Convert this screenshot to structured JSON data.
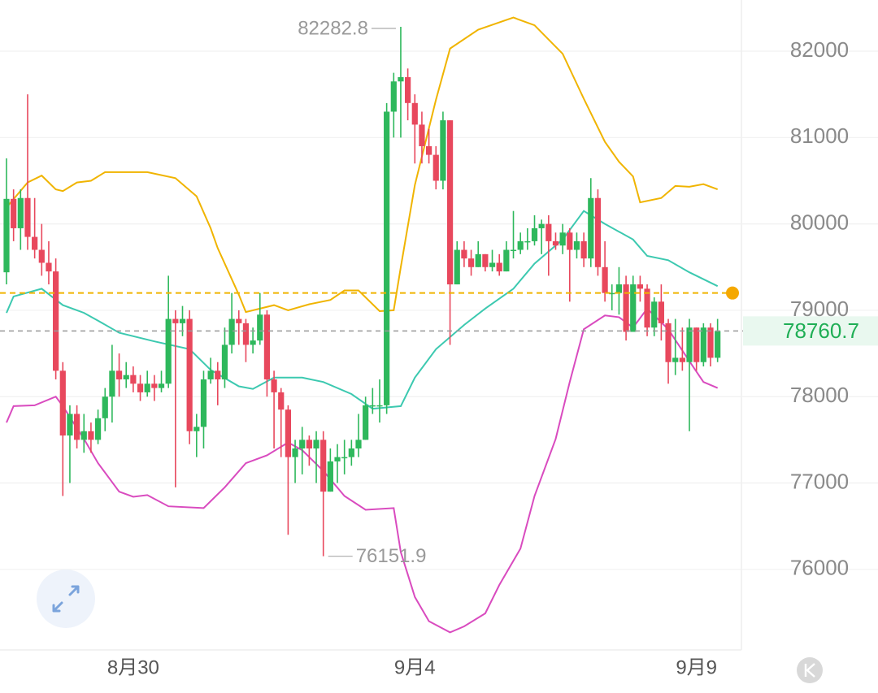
{
  "chart_data": {
    "type": "candlestick",
    "categories": [
      null,
      null,
      null,
      null,
      null,
      null,
      null,
      null,
      null,
      null,
      null,
      null,
      null,
      null,
      null,
      null,
      null,
      null,
      "8月30",
      null,
      null,
      null,
      null,
      null,
      null,
      null,
      null,
      null,
      null,
      null,
      null,
      null,
      null,
      null,
      null,
      null,
      null,
      null,
      null,
      null,
      null,
      null,
      null,
      null,
      null,
      null,
      null,
      null,
      null,
      null,
      null,
      null,
      null,
      null,
      null,
      null,
      null,
      null,
      "9月4",
      null,
      null,
      null,
      null,
      null,
      null,
      null,
      null,
      null,
      null,
      null,
      null,
      null,
      null,
      null,
      null,
      null,
      null,
      null,
      null,
      null,
      null,
      null,
      null,
      null,
      null,
      null,
      null,
      null,
      null,
      null,
      null,
      null,
      null,
      null,
      null,
      null,
      null,
      null,
      "9月9",
      null,
      null,
      null
    ],
    "open": [
      79440,
      80290,
      79950,
      80300,
      79850,
      79700,
      79550,
      79450,
      78300,
      77550,
      77800,
      77500,
      77600,
      77500,
      77750,
      78000,
      78300,
      78200,
      78250,
      78150,
      78050,
      78150,
      78100,
      78150,
      78900,
      78850,
      78900,
      77600,
      77650,
      78200,
      78300,
      78200,
      78600,
      78900,
      78850,
      78600,
      78650,
      78950,
      78200,
      78050,
      77850,
      77300,
      77400,
      77500,
      77400,
      77500,
      76900,
      77250,
      77300,
      77300,
      77400,
      77500,
      77900,
      77900,
      77900,
      81300,
      81650,
      81700,
      81400,
      81150,
      80900,
      80800,
      80500,
      81200,
      79300,
      79700,
      79600,
      79500,
      79650,
      79500,
      79550,
      79450,
      79700,
      79700,
      79800,
      79800,
      79950,
      80000,
      79800,
      79750,
      79900,
      79700,
      79800,
      79600,
      80300,
      79500,
      79200,
      79200,
      79300,
      78750,
      79300,
      79250,
      78800,
      79100,
      78850,
      78400,
      78450,
      78400,
      78800,
      78400,
      78800,
      78450
    ],
    "high": [
      80760,
      80400,
      80400,
      81500,
      80300,
      80000,
      79800,
      79600,
      78400,
      77900,
      77900,
      77800,
      77700,
      77850,
      78100,
      78600,
      78500,
      78400,
      78350,
      78250,
      78300,
      78250,
      78300,
      79400,
      79000,
      79050,
      79000,
      77800,
      78300,
      78450,
      78400,
      78800,
      79200,
      79000,
      78900,
      78800,
      79200,
      79000,
      78300,
      78100,
      77900,
      77500,
      77650,
      77550,
      77600,
      77600,
      77400,
      77450,
      77500,
      77500,
      77800,
      78000,
      78100,
      78200,
      81400,
      81750,
      82282.8,
      81800,
      81500,
      81300,
      81100,
      80900,
      81300,
      81200,
      79800,
      79800,
      79700,
      79800,
      79650,
      79700,
      79650,
      79800,
      80150,
      79900,
      79950,
      80100,
      80050,
      80100,
      79900,
      80000,
      79950,
      79900,
      79900,
      80530,
      80400,
      79800,
      79300,
      79500,
      79400,
      79400,
      79400,
      79300,
      79150,
      79300,
      78900,
      78900,
      78800,
      78900,
      78800,
      78850,
      78850,
      78900
    ],
    "low": [
      79300,
      79800,
      79700,
      79700,
      79600,
      79400,
      79300,
      78200,
      76850,
      77000,
      77400,
      77350,
      77350,
      77450,
      77600,
      77700,
      78000,
      78100,
      78050,
      77950,
      78000,
      77950,
      78050,
      78100,
      76950,
      78700,
      77450,
      77300,
      77400,
      78150,
      77900,
      78100,
      78500,
      78600,
      78400,
      78500,
      78600,
      78000,
      77400,
      77300,
      76400,
      77000,
      77100,
      77200,
      77000,
      76151.9,
      76900,
      77000,
      77100,
      77200,
      77300,
      77500,
      77800,
      77700,
      77800,
      81000,
      81000,
      81200,
      80700,
      80700,
      80700,
      80400,
      80400,
      78600,
      79300,
      79500,
      79400,
      79500,
      79450,
      79450,
      79400,
      79450,
      79600,
      79650,
      79700,
      79750,
      79650,
      79400,
      79700,
      79650,
      79100,
      79600,
      79500,
      79500,
      79400,
      79100,
      79000,
      78950,
      78650,
      78750,
      79100,
      78700,
      78700,
      78650,
      78150,
      78250,
      78300,
      77600,
      78300,
      78350,
      78350,
      78400
    ],
    "close": [
      80290,
      79950,
      80300,
      79850,
      79700,
      79550,
      79450,
      78300,
      77550,
      77800,
      77500,
      77600,
      77500,
      77750,
      78000,
      78300,
      78200,
      78250,
      78150,
      78050,
      78150,
      78100,
      78150,
      78900,
      78850,
      78900,
      77600,
      77650,
      78200,
      78300,
      78200,
      78600,
      78900,
      78850,
      78600,
      78650,
      78950,
      78200,
      78050,
      77850,
      77300,
      77400,
      77500,
      77400,
      77500,
      76900,
      77250,
      77300,
      77300,
      77400,
      77500,
      77900,
      77900,
      77900,
      81300,
      81650,
      81700,
      81400,
      81150,
      80900,
      80800,
      80500,
      81200,
      79300,
      79700,
      79600,
      79500,
      79650,
      79500,
      79550,
      79450,
      79700,
      79700,
      79800,
      79800,
      79950,
      80000,
      79800,
      79750,
      79900,
      79700,
      79800,
      79600,
      80300,
      79500,
      79200,
      79200,
      79300,
      78750,
      79300,
      79250,
      78800,
      79100,
      78850,
      78400,
      78450,
      78400,
      78800,
      78400,
      78800,
      78450,
      78760.7
    ],
    "up_color": "#2eb85c",
    "down_color": "#e8485d",
    "bands": [
      {
        "color": "#f0b400",
        "x": [
          0,
          3,
          5,
          7,
          8,
          10,
          12,
          14,
          20,
          24,
          27,
          29,
          30,
          33,
          34,
          38,
          40,
          43,
          46,
          48,
          50,
          53,
          55,
          56,
          58,
          61,
          63,
          67,
          72,
          75,
          79,
          82,
          85,
          87,
          89,
          90,
          93,
          95,
          97,
          99,
          101
        ],
        "values": [
          80190,
          80480,
          80560,
          80400,
          80380,
          80480,
          80500,
          80600,
          80600,
          80530,
          80320,
          79950,
          79720,
          79180,
          78980,
          79060,
          79000,
          79070,
          79120,
          79230,
          79230,
          78990,
          79000,
          79500,
          80450,
          81440,
          82030,
          82250,
          82390,
          82300,
          81970,
          81450,
          80950,
          80720,
          80550,
          80250,
          80300,
          80440,
          80430,
          80460,
          80400
        ]
      },
      {
        "color": "#3cc9b0",
        "x": [
          0,
          1,
          5,
          8,
          11,
          13,
          16,
          21,
          26,
          29,
          33,
          35,
          38,
          42,
          45,
          49,
          52,
          56,
          58,
          61,
          65,
          68,
          72,
          75,
          79,
          82,
          85,
          89,
          91,
          94,
          97,
          101
        ],
        "values": [
          78970,
          79160,
          79250,
          79060,
          78970,
          78880,
          78740,
          78640,
          78550,
          78310,
          78120,
          78090,
          78220,
          78220,
          78170,
          78030,
          77860,
          77890,
          78220,
          78550,
          78830,
          79020,
          79250,
          79540,
          79820,
          80150,
          80000,
          79820,
          79630,
          79580,
          79440,
          79280
        ]
      },
      {
        "color": "#d94bbf",
        "x": [
          0,
          1,
          4,
          7,
          8,
          11,
          13,
          16,
          18,
          20,
          23,
          28,
          31,
          34,
          37,
          40,
          42,
          45,
          48,
          51,
          55,
          56,
          58,
          60,
          63,
          65,
          68,
          70,
          73,
          75,
          78,
          80,
          82,
          85,
          87,
          89,
          91,
          94,
          97,
          99,
          101
        ],
        "values": [
          77700,
          77890,
          77900,
          78000,
          77890,
          77510,
          77230,
          76900,
          76840,
          76860,
          76730,
          76710,
          76950,
          77230,
          77320,
          77470,
          77380,
          77140,
          76850,
          76690,
          76710,
          76200,
          75680,
          75400,
          75270,
          75340,
          75490,
          75820,
          76240,
          76850,
          77510,
          78170,
          78780,
          78940,
          78920,
          78800,
          79020,
          78780,
          78410,
          78170,
          78100
        ]
      }
    ],
    "reference_line": {
      "value": 79200,
      "color": "#f0b400"
    },
    "ylim": [
      75067,
      82593
    ],
    "yticks": [
      76000,
      77000,
      78000,
      79000,
      80000,
      81000,
      82000
    ],
    "grid": true
  }
}
